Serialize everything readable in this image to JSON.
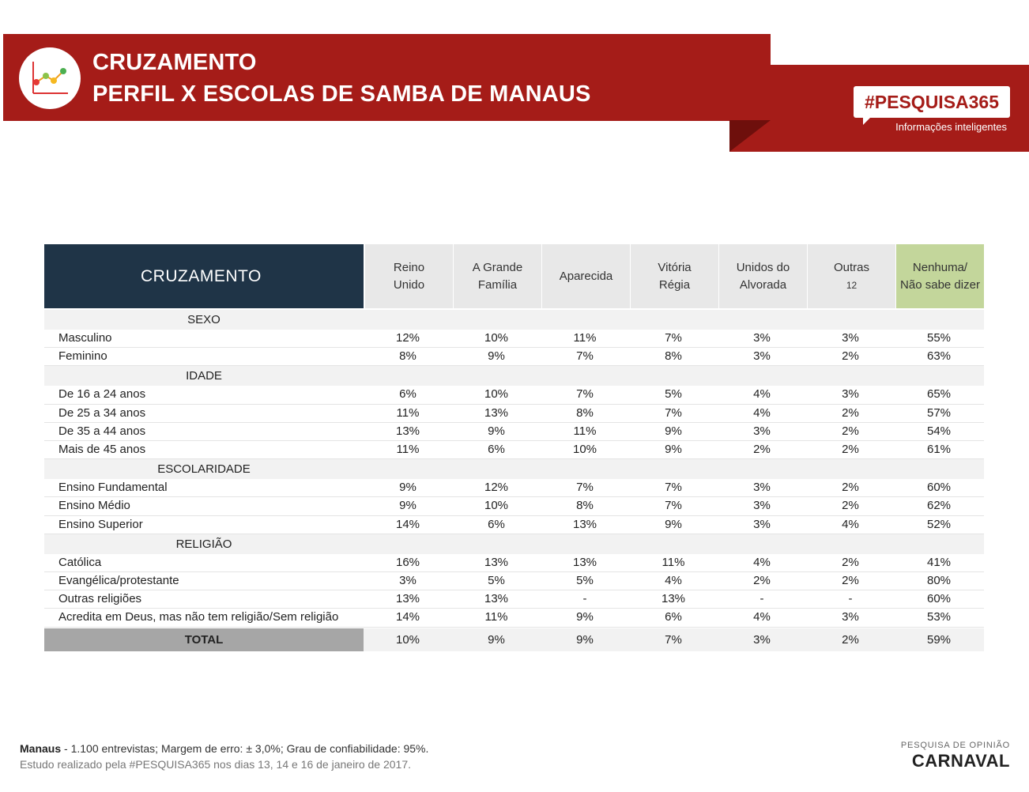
{
  "header": {
    "title_1": "CRUZAMENTO",
    "title_2": "PERFIL X ESCOLAS DE SAMBA DE MANAUS",
    "brand": "#PESQUISA365",
    "brand_sub": "Informações inteligentes",
    "logo_icon": "line-chart-icon"
  },
  "colors": {
    "banner": "#a51c18",
    "header_dark": "#1f3447",
    "green_col": "#c3d69b",
    "total_label": "#a6a6a6"
  },
  "chart_data": {
    "type": "table",
    "title": "CRUZAMENTO",
    "columns": [
      "Reino Unido",
      "A Grande Família",
      "Aparecida",
      "Vitória Régia",
      "Unidos do Alvorada",
      "Outras 12",
      "Nenhuma/ Não sabe dizer"
    ],
    "column_headers": [
      {
        "l1": "Reino",
        "l2": "Unido",
        "l3": ""
      },
      {
        "l1": "A Grande",
        "l2": "Família",
        "l3": ""
      },
      {
        "l1": "Aparecida",
        "l2": "",
        "l3": ""
      },
      {
        "l1": "Vitória",
        "l2": "Régia",
        "l3": ""
      },
      {
        "l1": "Unidos do",
        "l2": "Alvorada",
        "l3": ""
      },
      {
        "l1": "Outras",
        "l2": "",
        "l3": "12"
      },
      {
        "l1": "Nenhuma/",
        "l2": "Não sabe dizer",
        "l3": ""
      }
    ],
    "sections": [
      {
        "name": "SEXO",
        "rows": [
          {
            "label": "Masculino",
            "values": [
              "12%",
              "10%",
              "11%",
              "7%",
              "3%",
              "3%",
              "55%"
            ]
          },
          {
            "label": "Feminino",
            "values": [
              "8%",
              "9%",
              "7%",
              "8%",
              "3%",
              "2%",
              "63%"
            ]
          }
        ]
      },
      {
        "name": "IDADE",
        "rows": [
          {
            "label": "De 16 a 24 anos",
            "values": [
              "6%",
              "10%",
              "7%",
              "5%",
              "4%",
              "3%",
              "65%"
            ]
          },
          {
            "label": "De 25 a 34 anos",
            "values": [
              "11%",
              "13%",
              "8%",
              "7%",
              "4%",
              "2%",
              "57%"
            ]
          },
          {
            "label": "De 35 a 44 anos",
            "values": [
              "13%",
              "9%",
              "11%",
              "9%",
              "3%",
              "2%",
              "54%"
            ]
          },
          {
            "label": "Mais de 45 anos",
            "values": [
              "11%",
              "6%",
              "10%",
              "9%",
              "2%",
              "2%",
              "61%"
            ]
          }
        ]
      },
      {
        "name": "ESCOLARIDADE",
        "rows": [
          {
            "label": "Ensino Fundamental",
            "values": [
              "9%",
              "12%",
              "7%",
              "7%",
              "3%",
              "2%",
              "60%"
            ]
          },
          {
            "label": "Ensino Médio",
            "values": [
              "9%",
              "10%",
              "8%",
              "7%",
              "3%",
              "2%",
              "62%"
            ]
          },
          {
            "label": "Ensino Superior",
            "values": [
              "14%",
              "6%",
              "13%",
              "9%",
              "3%",
              "4%",
              "52%"
            ]
          }
        ]
      },
      {
        "name": "RELIGIÃO",
        "rows": [
          {
            "label": "Católica",
            "values": [
              "16%",
              "13%",
              "13%",
              "11%",
              "4%",
              "2%",
              "41%"
            ]
          },
          {
            "label": "Evangélica/protestante",
            "values": [
              "3%",
              "5%",
              "5%",
              "4%",
              "2%",
              "2%",
              "80%"
            ]
          },
          {
            "label": "Outras religiões",
            "values": [
              "13%",
              "13%",
              "-",
              "13%",
              "-",
              "-",
              "60%"
            ]
          },
          {
            "label": "Acredita em Deus, mas não tem religião/Sem religião",
            "values": [
              "14%",
              "11%",
              "9%",
              "6%",
              "4%",
              "3%",
              "53%"
            ]
          }
        ]
      }
    ],
    "total": {
      "label": "TOTAL",
      "values": [
        "10%",
        "9%",
        "9%",
        "7%",
        "3%",
        "2%",
        "59%"
      ]
    }
  },
  "footer": {
    "city": "Manaus",
    "line1_rest": " - 1.100 entrevistas; Margem de erro: ± 3,0%; Grau de confiabilidade: 95%.",
    "line2": "Estudo realizado pela #PESQUISA365 nos dias 13, 14 e 16 de janeiro de 2017.",
    "brand_small": "PESQUISA DE OPINIÃO",
    "brand_big": "CARNAVAL"
  }
}
